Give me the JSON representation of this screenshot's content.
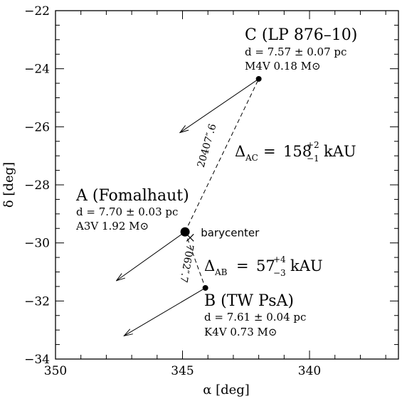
{
  "chart_data": {
    "type": "scatter",
    "xlabel": "α [deg]",
    "ylabel": "δ [deg]",
    "xlim": [
      350,
      336.5
    ],
    "ylim": [
      -34,
      -22
    ],
    "xticks": [
      350,
      345,
      340
    ],
    "yticks": [
      -34,
      -32,
      -30,
      -28,
      -26,
      -24,
      -22
    ],
    "x_reversed": true,
    "grid": false,
    "points": [
      {
        "id": "A",
        "x": 344.9,
        "y": -29.62,
        "marker": "dot-large",
        "title": "A (Fomalhaut)",
        "line1": "d  =  7.70 ± 0.03 pc",
        "line2": "A3V   1.92 M⊙",
        "motion_end": [
          347.6,
          -31.3
        ]
      },
      {
        "id": "B",
        "x": 344.1,
        "y": -31.55,
        "marker": "dot",
        "title": "B (TW PsA)",
        "line1": "d  =  7.61 ± 0.04 pc",
        "line2": "K4V   0.73 M⊙",
        "motion_end": [
          347.3,
          -33.2
        ]
      },
      {
        "id": "C",
        "x": 342.0,
        "y": -24.35,
        "marker": "dot",
        "title": "C (LP 876–10)",
        "line1": "d  =  7.57 ± 0.07 pc",
        "line2": "M4V   0.18 M⊙",
        "motion_end": [
          345.1,
          -26.2
        ]
      }
    ],
    "barycenter": {
      "x": 344.7,
      "y": -29.82,
      "label": "barycenter"
    },
    "separations": [
      {
        "from": "A",
        "to": "C",
        "angle_label": "20407″.6",
        "delta_sub": "AC",
        "value": "158",
        "sup": "+2",
        "sub": "−1",
        "unit": "kAU"
      },
      {
        "from": "A",
        "to": "B",
        "angle_label": "7062″.7",
        "delta_sub": "AB",
        "value": "57",
        "sup": "+4",
        "sub": "−3",
        "unit": "kAU"
      }
    ]
  }
}
